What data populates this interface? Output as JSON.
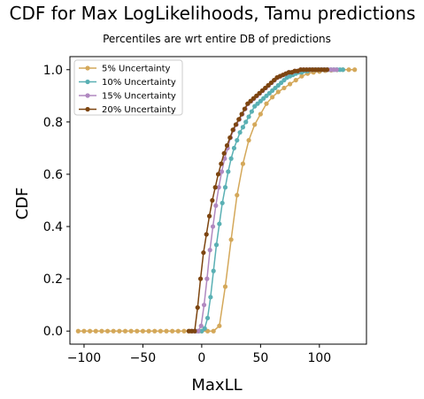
{
  "chart_data": {
    "type": "line",
    "title": "CDF for Max LogLikelihoods, Tamu predictions",
    "subtitle": "Percentiles are wrt entire DB of predictions",
    "xlabel": "MaxLL",
    "ylabel": "CDF",
    "xlim": [
      -112,
      140
    ],
    "ylim": [
      -0.05,
      1.05
    ],
    "xticks": [
      -100,
      -50,
      0,
      50,
      100
    ],
    "xtick_labels": [
      "−100",
      "−50",
      "0",
      "50",
      "100"
    ],
    "yticks": [
      0.0,
      0.2,
      0.4,
      0.6,
      0.8,
      1.0
    ],
    "ytick_labels": [
      "0.0",
      "0.2",
      "0.4",
      "0.6",
      "0.8",
      "1.0"
    ],
    "grid": false,
    "legend_position": "top-left",
    "series": [
      {
        "name": "5% Uncertainty",
        "color": "#d4a85a",
        "x": [
          -105,
          -100,
          -95,
          -90,
          -85,
          -80,
          -75,
          -70,
          -65,
          -60,
          -55,
          -50,
          -45,
          -40,
          -35,
          -30,
          -25,
          -20,
          -15,
          -10,
          -5,
          0,
          5,
          10,
          15,
          20,
          25,
          30,
          35,
          40,
          45,
          50,
          55,
          60,
          65,
          70,
          75,
          80,
          85,
          90,
          95,
          100,
          105,
          110,
          115,
          120,
          125,
          130
        ],
        "y": [
          0,
          0,
          0,
          0,
          0,
          0,
          0,
          0,
          0,
          0,
          0,
          0,
          0,
          0,
          0,
          0,
          0,
          0,
          0,
          0,
          0,
          0,
          0,
          0,
          0.02,
          0.17,
          0.35,
          0.52,
          0.64,
          0.73,
          0.79,
          0.83,
          0.87,
          0.895,
          0.915,
          0.93,
          0.945,
          0.96,
          0.975,
          0.985,
          0.99,
          0.993,
          0.996,
          0.998,
          0.999,
          1.0,
          1.0,
          1.0
        ]
      },
      {
        "name": "10% Uncertainty",
        "color": "#5ab0b4",
        "x": [
          -5,
          -2.5,
          0,
          2.5,
          5,
          7.5,
          10,
          12.5,
          15,
          17.5,
          20,
          22.5,
          25,
          27.5,
          30,
          32.5,
          35,
          37.5,
          40,
          42.5,
          45,
          47.5,
          50,
          52.5,
          55,
          57.5,
          60,
          62.5,
          65,
          67.5,
          70,
          72.5,
          75,
          77.5,
          80,
          82.5,
          85,
          87.5,
          90,
          92.5,
          95,
          97.5,
          100,
          102.5,
          105,
          107.5,
          110,
          112.5,
          115,
          117.5,
          120
        ],
        "y": [
          0,
          0,
          0,
          0.01,
          0.05,
          0.13,
          0.23,
          0.33,
          0.41,
          0.49,
          0.55,
          0.61,
          0.66,
          0.7,
          0.73,
          0.76,
          0.78,
          0.8,
          0.82,
          0.84,
          0.86,
          0.87,
          0.88,
          0.89,
          0.9,
          0.91,
          0.92,
          0.93,
          0.94,
          0.95,
          0.96,
          0.97,
          0.975,
          0.98,
          0.985,
          0.99,
          0.99,
          0.995,
          0.995,
          1.0,
          1.0,
          1.0,
          1.0,
          1.0,
          1.0,
          1.0,
          1.0,
          1.0,
          1.0,
          1.0,
          1.0
        ]
      },
      {
        "name": "15% Uncertainty",
        "color": "#b088c0",
        "x": [
          -8,
          -5.5,
          -3,
          -0.5,
          2,
          4.5,
          7,
          9.5,
          12,
          14.5,
          17,
          19.5,
          22,
          24.5,
          27,
          29.5,
          32,
          34.5,
          37,
          39.5,
          42,
          44.5,
          47,
          49.5,
          52,
          54.5,
          57,
          59.5,
          62,
          64.5,
          67,
          69.5,
          72,
          74.5,
          77,
          79.5,
          82,
          84.5,
          87,
          89.5,
          92,
          94.5,
          97,
          99.5,
          102,
          104.5,
          107,
          109.5,
          112,
          114.5
        ],
        "y": [
          0,
          0,
          0,
          0.02,
          0.1,
          0.2,
          0.31,
          0.4,
          0.48,
          0.55,
          0.61,
          0.66,
          0.7,
          0.74,
          0.77,
          0.79,
          0.81,
          0.83,
          0.85,
          0.87,
          0.88,
          0.89,
          0.9,
          0.91,
          0.92,
          0.93,
          0.94,
          0.95,
          0.96,
          0.97,
          0.975,
          0.98,
          0.985,
          0.99,
          0.99,
          0.995,
          0.995,
          1.0,
          1.0,
          1.0,
          1.0,
          1.0,
          1.0,
          1.0,
          1.0,
          1.0,
          1.0,
          1.0,
          1.0,
          1.0
        ]
      },
      {
        "name": "20% Uncertainty",
        "color": "#7d4510",
        "x": [
          -11,
          -8.5,
          -6,
          -3.5,
          -1,
          1.5,
          4,
          6.5,
          9,
          11.5,
          14,
          16.5,
          19,
          21.5,
          24,
          26.5,
          29,
          31.5,
          34,
          36.5,
          39,
          41.5,
          44,
          46.5,
          49,
          51.5,
          54,
          56.5,
          59,
          61.5,
          64,
          66.5,
          69,
          71.5,
          74,
          76.5,
          79,
          81.5,
          84,
          86.5,
          89,
          91.5,
          94,
          96.5,
          99,
          101.5,
          104,
          106.5
        ],
        "y": [
          0,
          0,
          0,
          0.09,
          0.2,
          0.3,
          0.37,
          0.44,
          0.5,
          0.55,
          0.6,
          0.64,
          0.68,
          0.71,
          0.74,
          0.77,
          0.79,
          0.81,
          0.83,
          0.85,
          0.87,
          0.88,
          0.89,
          0.9,
          0.91,
          0.92,
          0.93,
          0.94,
          0.95,
          0.96,
          0.97,
          0.975,
          0.98,
          0.985,
          0.99,
          0.99,
          0.995,
          0.995,
          1.0,
          1.0,
          1.0,
          1.0,
          1.0,
          1.0,
          1.0,
          1.0,
          1.0,
          1.0
        ]
      }
    ]
  }
}
